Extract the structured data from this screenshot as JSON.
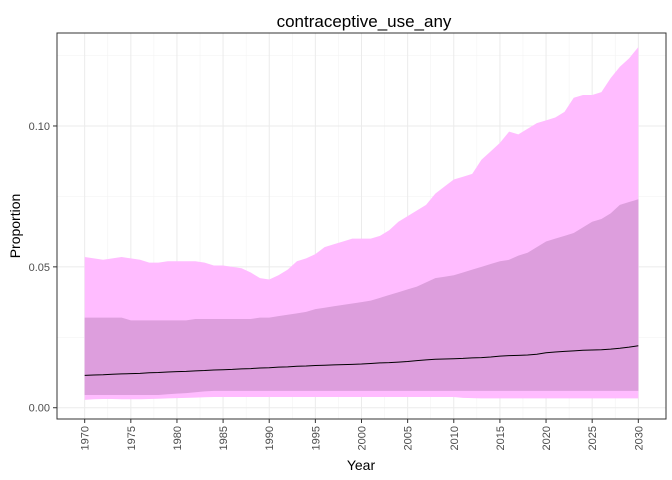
{
  "chart_data": {
    "type": "area",
    "title": "contraceptive_use_any",
    "xlabel": "Year",
    "ylabel": "Proportion",
    "xlim": [
      1967,
      2033
    ],
    "ylim": [
      -0.004,
      0.133
    ],
    "x_ticks": [
      1970,
      1975,
      1980,
      1985,
      1990,
      1995,
      2000,
      2005,
      2010,
      2015,
      2020,
      2025,
      2030
    ],
    "y_ticks": [
      0.0,
      0.05,
      0.1
    ],
    "y_tick_labels": [
      "0.00",
      "0.05",
      "0.10"
    ],
    "grid": true,
    "legend": "none",
    "colors": {
      "outer_band": "#FFBCFF",
      "inner_band": "#DD9EDD",
      "median_line": "#000000",
      "grid_major": "#EBEBEB",
      "grid_minor": "#F3F3F3",
      "panel_border": "#333333"
    },
    "x": [
      1970,
      1971,
      1972,
      1973,
      1974,
      1975,
      1976,
      1977,
      1978,
      1979,
      1980,
      1981,
      1982,
      1983,
      1984,
      1985,
      1986,
      1987,
      1988,
      1989,
      1990,
      1991,
      1992,
      1993,
      1994,
      1995,
      1996,
      1997,
      1998,
      1999,
      2000,
      2001,
      2002,
      2003,
      2004,
      2005,
      2006,
      2007,
      2008,
      2009,
      2010,
      2011,
      2012,
      2013,
      2014,
      2015,
      2016,
      2017,
      2018,
      2019,
      2020,
      2021,
      2022,
      2023,
      2024,
      2025,
      2026,
      2027,
      2028,
      2029,
      2030
    ],
    "series": [
      {
        "role": "outer_upper",
        "values": [
          0.0535,
          0.053,
          0.0525,
          0.053,
          0.0535,
          0.053,
          0.0525,
          0.0515,
          0.0515,
          0.052,
          0.052,
          0.052,
          0.052,
          0.0515,
          0.0505,
          0.0505,
          0.05,
          0.0495,
          0.048,
          0.046,
          0.0455,
          0.047,
          0.049,
          0.052,
          0.053,
          0.0545,
          0.057,
          0.058,
          0.059,
          0.06,
          0.06,
          0.06,
          0.061,
          0.063,
          0.066,
          0.068,
          0.07,
          0.072,
          0.076,
          0.0785,
          0.081,
          0.082,
          0.083,
          0.088,
          0.091,
          0.094,
          0.098,
          0.097,
          0.099,
          0.101,
          0.102,
          0.103,
          0.105,
          0.11,
          0.111,
          0.111,
          0.112,
          0.117,
          0.121,
          0.124,
          0.128
        ]
      },
      {
        "role": "inner_upper",
        "values": [
          0.032,
          0.032,
          0.032,
          0.032,
          0.032,
          0.031,
          0.031,
          0.031,
          0.031,
          0.031,
          0.031,
          0.031,
          0.0315,
          0.0315,
          0.0315,
          0.0315,
          0.0315,
          0.0315,
          0.0315,
          0.032,
          0.032,
          0.0325,
          0.033,
          0.0335,
          0.034,
          0.035,
          0.0355,
          0.036,
          0.0365,
          0.037,
          0.0375,
          0.038,
          0.039,
          0.04,
          0.041,
          0.042,
          0.043,
          0.0445,
          0.046,
          0.0465,
          0.047,
          0.048,
          0.049,
          0.05,
          0.051,
          0.052,
          0.0525,
          0.054,
          0.055,
          0.057,
          0.059,
          0.06,
          0.061,
          0.062,
          0.064,
          0.066,
          0.067,
          0.069,
          0.072,
          0.073,
          0.074
        ]
      },
      {
        "role": "median",
        "values": [
          0.0115,
          0.0116,
          0.0117,
          0.0119,
          0.012,
          0.0121,
          0.0122,
          0.0124,
          0.0125,
          0.0127,
          0.0128,
          0.0129,
          0.0131,
          0.0132,
          0.0134,
          0.0135,
          0.0136,
          0.0138,
          0.0139,
          0.0141,
          0.0142,
          0.0144,
          0.0145,
          0.0147,
          0.0148,
          0.015,
          0.0151,
          0.0152,
          0.0153,
          0.0154,
          0.0155,
          0.0157,
          0.0159,
          0.016,
          0.0162,
          0.0164,
          0.0167,
          0.017,
          0.0172,
          0.0173,
          0.0174,
          0.0175,
          0.0177,
          0.0178,
          0.018,
          0.0183,
          0.0185,
          0.0186,
          0.0187,
          0.019,
          0.0195,
          0.0198,
          0.02,
          0.0202,
          0.0204,
          0.0205,
          0.0206,
          0.0208,
          0.0211,
          0.0215,
          0.022
        ]
      },
      {
        "role": "inner_lower",
        "values": [
          0.0045,
          0.0045,
          0.0045,
          0.0045,
          0.0045,
          0.0045,
          0.0045,
          0.0045,
          0.0045,
          0.0048,
          0.005,
          0.0052,
          0.0055,
          0.0058,
          0.006,
          0.006,
          0.006,
          0.006,
          0.006,
          0.006,
          0.006,
          0.006,
          0.006,
          0.006,
          0.006,
          0.006,
          0.006,
          0.006,
          0.006,
          0.006,
          0.006,
          0.006,
          0.006,
          0.006,
          0.006,
          0.006,
          0.006,
          0.006,
          0.006,
          0.006,
          0.006,
          0.006,
          0.006,
          0.006,
          0.006,
          0.006,
          0.006,
          0.006,
          0.006,
          0.006,
          0.006,
          0.006,
          0.006,
          0.006,
          0.006,
          0.006,
          0.006,
          0.006,
          0.006,
          0.006,
          0.006
        ]
      },
      {
        "role": "outer_lower",
        "values": [
          0.0028,
          0.003,
          0.0031,
          0.0031,
          0.003,
          0.003,
          0.003,
          0.0031,
          0.0032,
          0.0033,
          0.0034,
          0.0035,
          0.0036,
          0.0037,
          0.0038,
          0.0038,
          0.0038,
          0.0038,
          0.0038,
          0.0038,
          0.0038,
          0.0038,
          0.0038,
          0.0038,
          0.0038,
          0.0038,
          0.0038,
          0.0038,
          0.0038,
          0.0038,
          0.0038,
          0.0038,
          0.0038,
          0.0038,
          0.0038,
          0.0038,
          0.0038,
          0.0038,
          0.0038,
          0.0038,
          0.0038,
          0.0035,
          0.0034,
          0.0033,
          0.0033,
          0.0033,
          0.0033,
          0.0033,
          0.0033,
          0.0033,
          0.0033,
          0.0033,
          0.0033,
          0.0033,
          0.0033,
          0.0033,
          0.0033,
          0.0033,
          0.0033,
          0.0033,
          0.0033
        ]
      }
    ]
  }
}
